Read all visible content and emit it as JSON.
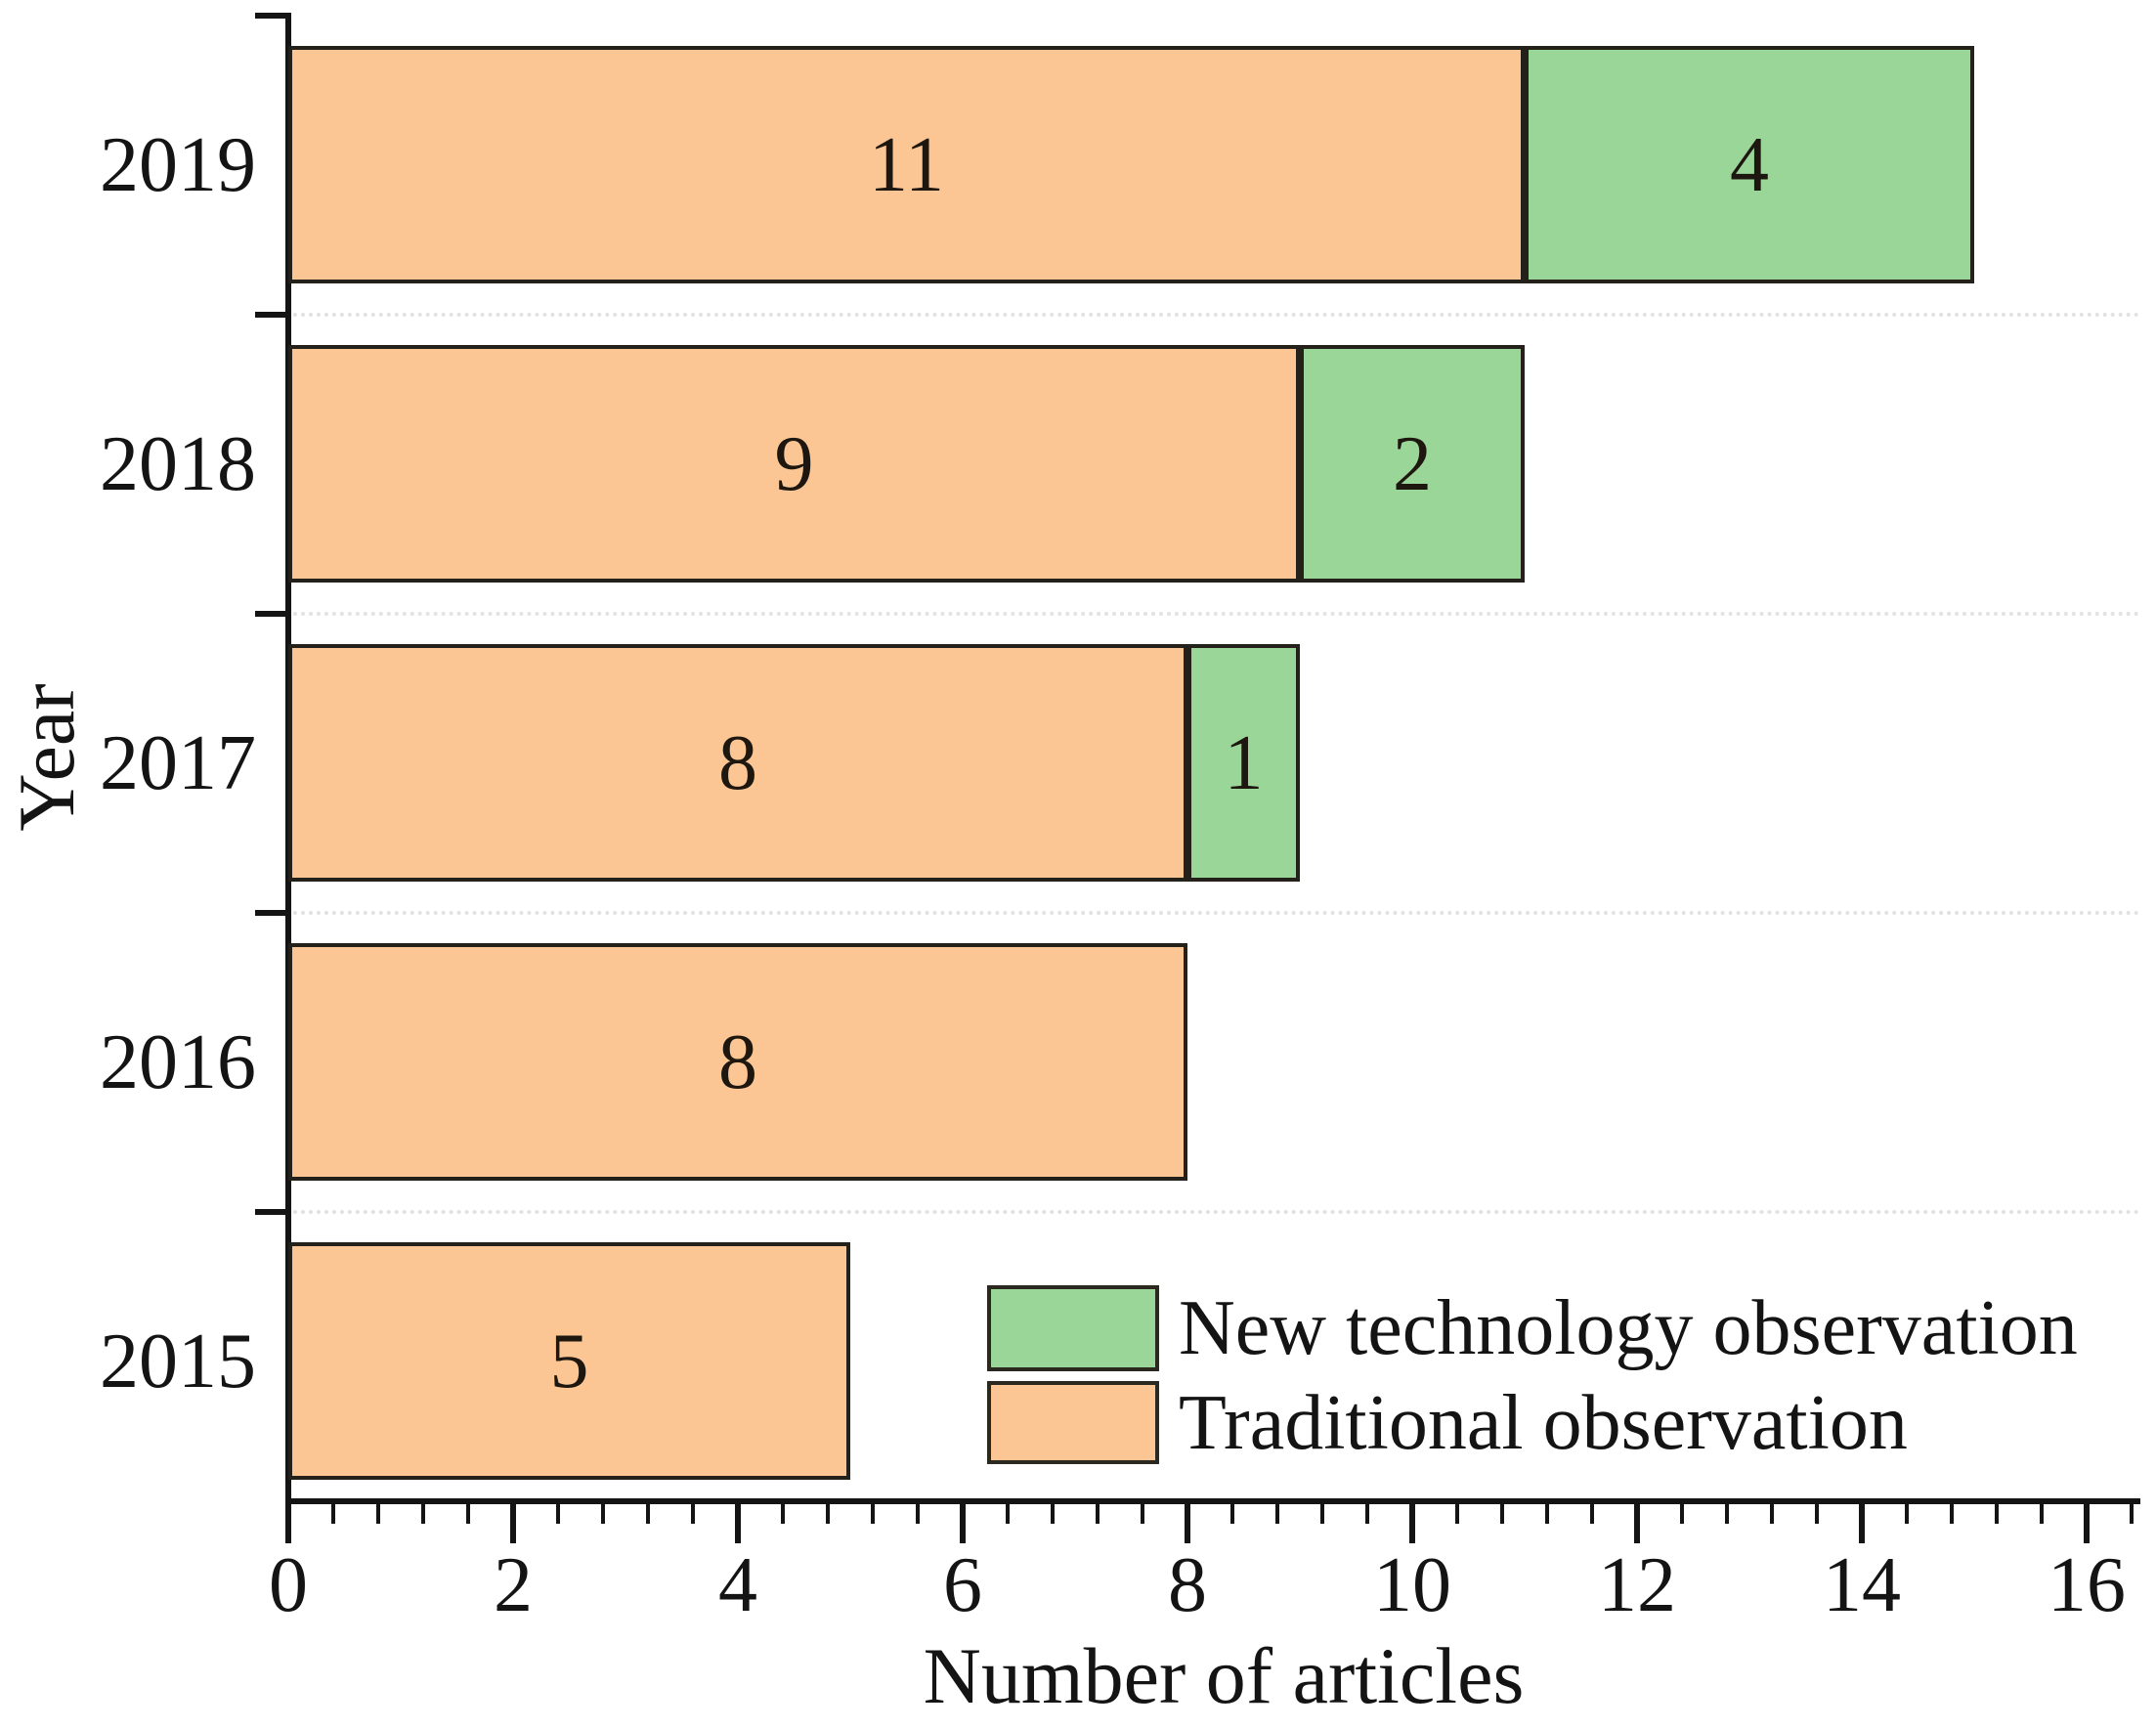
{
  "chart_data": {
    "type": "bar",
    "orientation": "horizontal",
    "stacked": true,
    "title": "",
    "xlabel": "Number of articles",
    "ylabel": "Year",
    "categories": [
      "2019",
      "2018",
      "2017",
      "2016",
      "2015"
    ],
    "series": [
      {
        "name": "Traditional observation",
        "color": "#FCC694",
        "values": [
          11,
          9,
          8,
          8,
          5
        ]
      },
      {
        "name": "New technology observation",
        "color": "#9BD699",
        "values": [
          4,
          2,
          1,
          0,
          0
        ]
      }
    ],
    "totals": [
      15,
      11,
      9,
      8,
      5
    ],
    "bar_value_labels": {
      "2019": [
        11,
        4
      ],
      "2018": [
        9,
        2
      ],
      "2017": [
        8,
        1
      ],
      "2016": [
        8,
        null
      ],
      "2015": [
        5,
        null
      ]
    },
    "xlim": [
      0,
      16
    ],
    "x_major_ticks": [
      0,
      2,
      4,
      6,
      8,
      10,
      12,
      14,
      16
    ],
    "x_minor_ticks_per_major": 4,
    "grid": "dotted horizontal separator lines between category slots",
    "legend": {
      "position": "inside-bottom-right",
      "entries": [
        {
          "label": "New technology observation",
          "color": "#9BD699"
        },
        {
          "label": "Traditional observation",
          "color": "#FCC694"
        }
      ]
    },
    "colors": {
      "traditional": "#FCC694",
      "new_technology": "#9BD699",
      "bar_border": "#24201a",
      "axis": "#141414",
      "text": "#141414",
      "gridline": "#e2e2e2",
      "background": "#ffffff"
    }
  }
}
